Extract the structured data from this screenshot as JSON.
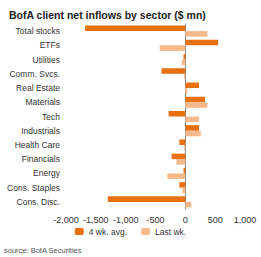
{
  "chart_data": {
    "type": "bar",
    "title": "BofA client net inflows by sector ($ mn)",
    "annotations": [
      "source: BofA Securities"
    ],
    "orientation": "horizontal",
    "categories": [
      "Total stocks",
      "ETFs",
      "Utilities",
      "Comm. Svcs.",
      "Real Estate",
      "Materials",
      "Tech",
      "Industrials",
      "Health Care",
      "Financials",
      "Energy",
      "Cons. Staples",
      "Cons. Disc."
    ],
    "series": [
      {
        "name": "4 wk. avg.",
        "color": "#e8700f",
        "values": [
          -1680,
          550,
          -30,
          -400,
          230,
          330,
          -280,
          230,
          -100,
          -230,
          -30,
          -100,
          -1300
        ]
      },
      {
        "name": "Last wk.",
        "color": "#f5b98b",
        "values": [
          370,
          -430,
          -60,
          -20,
          30,
          370,
          230,
          260,
          -20,
          -150,
          -300,
          -50,
          100
        ]
      }
    ],
    "xlim": [
      -2000,
      1000
    ],
    "xticks": [
      -2000,
      -1500,
      -1000,
      -500,
      0,
      500,
      1000
    ],
    "grid": false,
    "legend": "bottom"
  }
}
